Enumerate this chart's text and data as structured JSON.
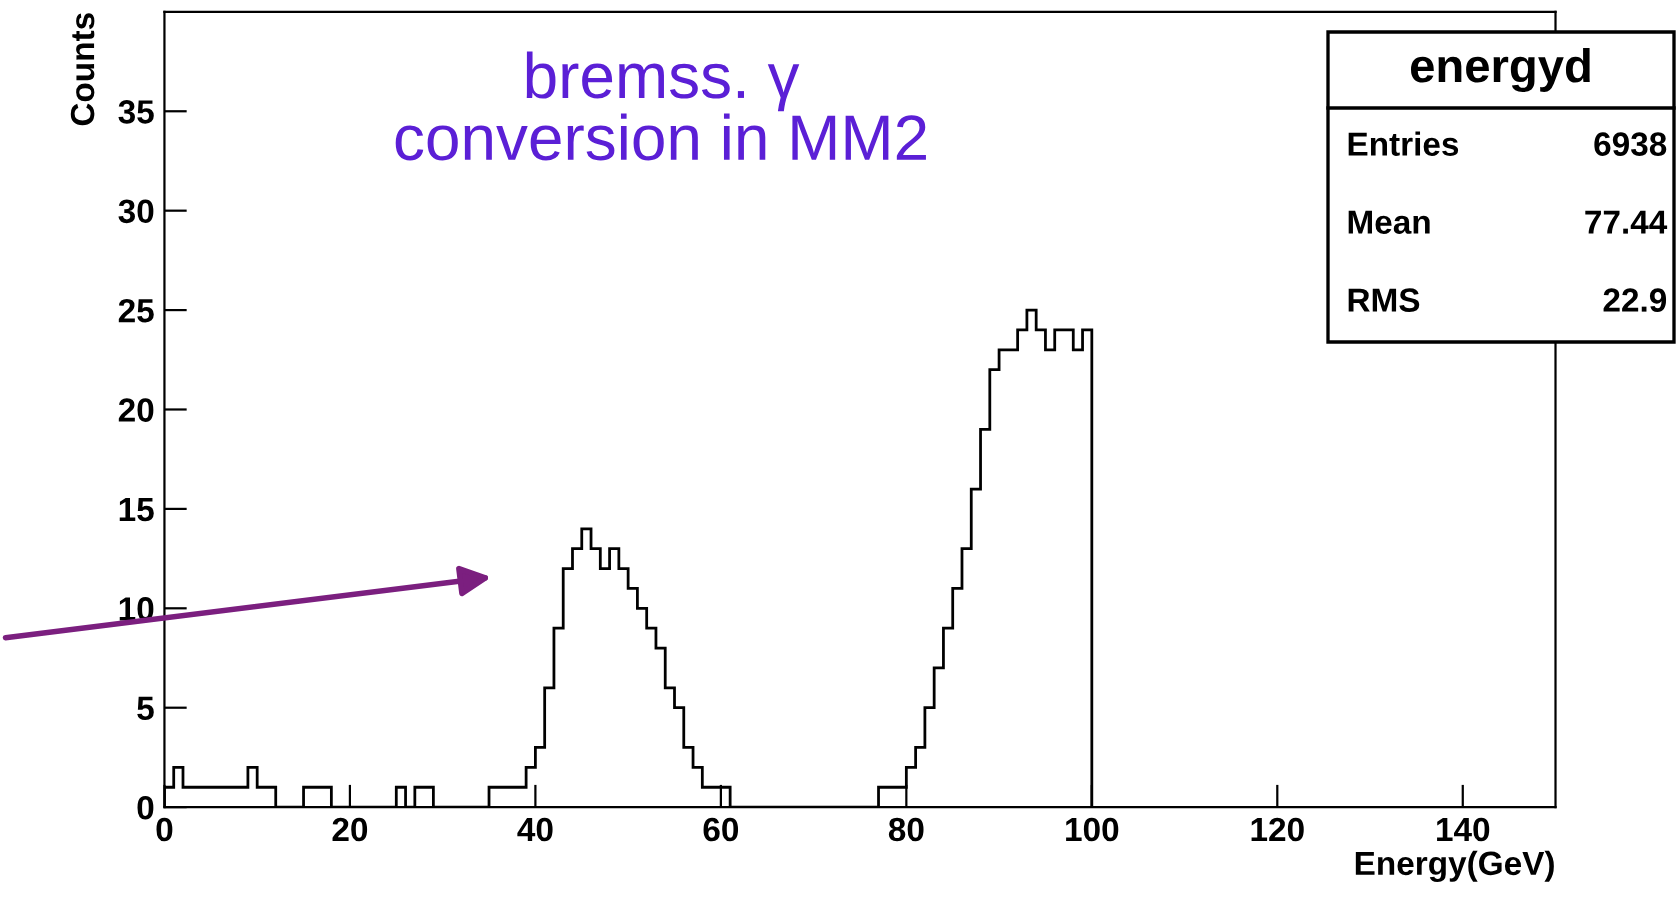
{
  "chart_data": {
    "type": "histogram",
    "xlabel": "Energy(GeV)",
    "ylabel": "Counts",
    "bins": [
      0,
      1,
      2,
      3,
      4,
      5,
      6,
      7,
      8,
      9,
      10,
      11,
      12,
      13,
      14,
      15,
      16,
      17,
      18,
      19,
      20,
      21,
      22,
      23,
      24,
      25,
      26,
      27,
      28,
      29,
      30,
      31,
      32,
      33,
      34,
      35,
      36,
      37,
      38,
      39,
      40,
      41,
      42,
      43,
      44,
      45,
      46,
      47,
      48,
      49,
      50,
      51,
      52,
      53,
      54,
      55,
      56,
      57,
      58,
      59,
      60,
      61,
      62,
      63,
      64,
      65,
      66,
      67,
      68,
      69,
      70,
      71,
      72,
      73,
      74,
      75,
      76,
      77,
      78,
      79,
      80,
      81,
      82,
      83,
      84,
      85,
      86,
      87,
      88,
      89,
      90,
      91,
      92,
      93,
      94,
      95,
      96,
      97,
      98,
      99,
      100
    ],
    "values": [
      1,
      2,
      1,
      1,
      1,
      1,
      1,
      1,
      1,
      2,
      1,
      1,
      0,
      0,
      0,
      1,
      1,
      1,
      0,
      0,
      0,
      0,
      0,
      0,
      0,
      1,
      0,
      1,
      1,
      0,
      0,
      0,
      0,
      0,
      0,
      1,
      1,
      1,
      1,
      2,
      3,
      6,
      9,
      12,
      13,
      14,
      13,
      12,
      13,
      12,
      11,
      10,
      9,
      8,
      6,
      5,
      3,
      2,
      1,
      1,
      1,
      0,
      0,
      0,
      0,
      0,
      0,
      0,
      0,
      0,
      0,
      0,
      0,
      0,
      0,
      0,
      0,
      1,
      1,
      1,
      2,
      3,
      5,
      7,
      9,
      11,
      13,
      16,
      19,
      22,
      23,
      23,
      24,
      25,
      24,
      23,
      24,
      24,
      23,
      24
    ],
    "color": "#000000",
    "xlim": [
      0,
      150
    ],
    "xticks": [
      0,
      20,
      40,
      60,
      80,
      100,
      120,
      140
    ],
    "ylim": [
      0,
      40
    ],
    "yticks": [
      0,
      5,
      10,
      15,
      20,
      25,
      30,
      35
    ],
    "grid": false,
    "annotations": [
      "bremss. γ\nconversion in MM2",
      "energyd",
      "Entries",
      "6938",
      "Mean",
      "77.44",
      "RMS",
      "22.9"
    ]
  }
}
